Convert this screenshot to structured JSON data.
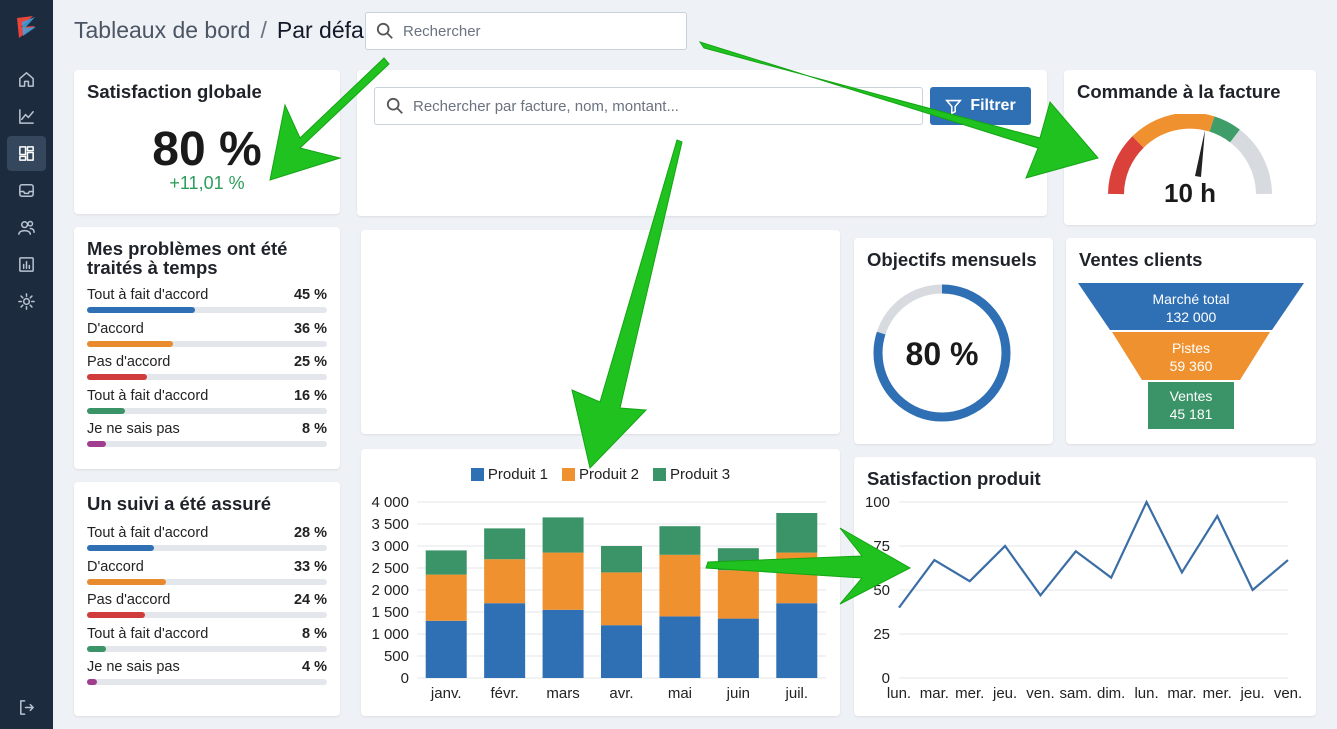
{
  "breadcrumb": {
    "root": "Tableaux de bord",
    "separator": "/",
    "current": "Par défaut"
  },
  "header_search": {
    "placeholder": "Rechercher"
  },
  "sidebar": {
    "items": [
      {
        "icon": "home-icon"
      },
      {
        "icon": "chart-line-icon"
      },
      {
        "icon": "dashboard-icon",
        "active": true
      },
      {
        "icon": "inbox-icon"
      },
      {
        "icon": "users-icon"
      },
      {
        "icon": "report-icon"
      },
      {
        "icon": "gear-icon"
      }
    ],
    "bottom_icon": "logout-icon"
  },
  "satisfaction_globale": {
    "title": "Satisfaction globale",
    "value": "80 %",
    "delta": "+11,01 %"
  },
  "toolbar": {
    "search_placeholder": "Rechercher par facture, nom, montant...",
    "filter_label": "Filtrer"
  },
  "commande": {
    "title": "Commande à la facture",
    "value": "10 h",
    "gauge_fraction": 0.6,
    "colors": [
      "#d9413a",
      "#f0912f",
      "#3f9d69",
      "#d7dbe0"
    ]
  },
  "problemes": {
    "title": "Mes problèmes ont été traités à temps",
    "rows": [
      {
        "label": "Tout à fait d'accord",
        "value": "45 %",
        "pct": 45,
        "color": "#2f6fb3"
      },
      {
        "label": "D'accord",
        "value": "36 %",
        "pct": 36,
        "color": "#e88a2e"
      },
      {
        "label": "Pas d'accord",
        "value": "25 %",
        "pct": 25,
        "color": "#d03b3b"
      },
      {
        "label": "Tout à fait d'accord",
        "value": "16 %",
        "pct": 16,
        "color": "#3a9468"
      },
      {
        "label": "Je ne sais pas",
        "value": "8 %",
        "pct": 8,
        "color": "#a03d8f"
      }
    ]
  },
  "suivi": {
    "title": "Un suivi a été assuré",
    "rows": [
      {
        "label": "Tout à fait d'accord",
        "value": "28 %",
        "pct": 28,
        "color": "#2f6fb3"
      },
      {
        "label": "D'accord",
        "value": "33 %",
        "pct": 33,
        "color": "#e88a2e"
      },
      {
        "label": "Pas d'accord",
        "value": "24 %",
        "pct": 24,
        "color": "#d03b3b"
      },
      {
        "label": "Tout à fait d'accord",
        "value": "8 %",
        "pct": 8,
        "color": "#3a9468"
      },
      {
        "label": "Je ne sais pas",
        "value": "4 %",
        "pct": 4,
        "color": "#a03d8f"
      }
    ]
  },
  "objectifs": {
    "title": "Objectifs mensuels",
    "value": "80 %",
    "fraction": 0.8,
    "color": "#2f6fb3"
  },
  "ventes_clients": {
    "title": "Ventes clients",
    "stages": [
      {
        "label": "Marché total",
        "value": "132 000",
        "color": "#2f6fb3"
      },
      {
        "label": "Pistes",
        "value": "59 360",
        "color": "#f0912f"
      },
      {
        "label": "Ventes",
        "value": "45 181",
        "color": "#3a9468"
      }
    ]
  },
  "produit_chart": {
    "title": "Satisfaction produit"
  },
  "chart_data": [
    {
      "type": "bar",
      "stacked": true,
      "categories": [
        "janv.",
        "févr.",
        "mars",
        "avr.",
        "mai",
        "juin",
        "juil."
      ],
      "series": [
        {
          "name": "Produit 1",
          "color": "#2f6fb3",
          "values": [
            1300,
            1700,
            1550,
            1200,
            1400,
            1350,
            1700
          ]
        },
        {
          "name": "Produit 2",
          "color": "#f0912f",
          "values": [
            1050,
            1000,
            1300,
            1200,
            1400,
            1100,
            1150
          ]
        },
        {
          "name": "Produit 3",
          "color": "#3a9468",
          "values": [
            550,
            700,
            800,
            600,
            650,
            500,
            900
          ]
        }
      ],
      "yticks": [
        "0",
        "500",
        "1 000",
        "1 500",
        "2 000",
        "2 500",
        "3 000",
        "3 500",
        "4 000"
      ],
      "ylim": [
        0,
        4000
      ]
    },
    {
      "type": "line",
      "title": "Satisfaction produit",
      "categories": [
        "lun.",
        "mar.",
        "mer.",
        "jeu.",
        "ven.",
        "sam.",
        "dim.",
        "lun.",
        "mar.",
        "mer.",
        "jeu.",
        "ven."
      ],
      "series": [
        {
          "color": "#3a6ea5",
          "values": [
            40,
            67,
            55,
            75,
            47,
            72,
            57,
            100,
            60,
            92,
            50,
            67
          ]
        }
      ],
      "yticks": [
        "0",
        "25",
        "50",
        "75",
        "100"
      ],
      "ylim": [
        0,
        100
      ]
    }
  ]
}
